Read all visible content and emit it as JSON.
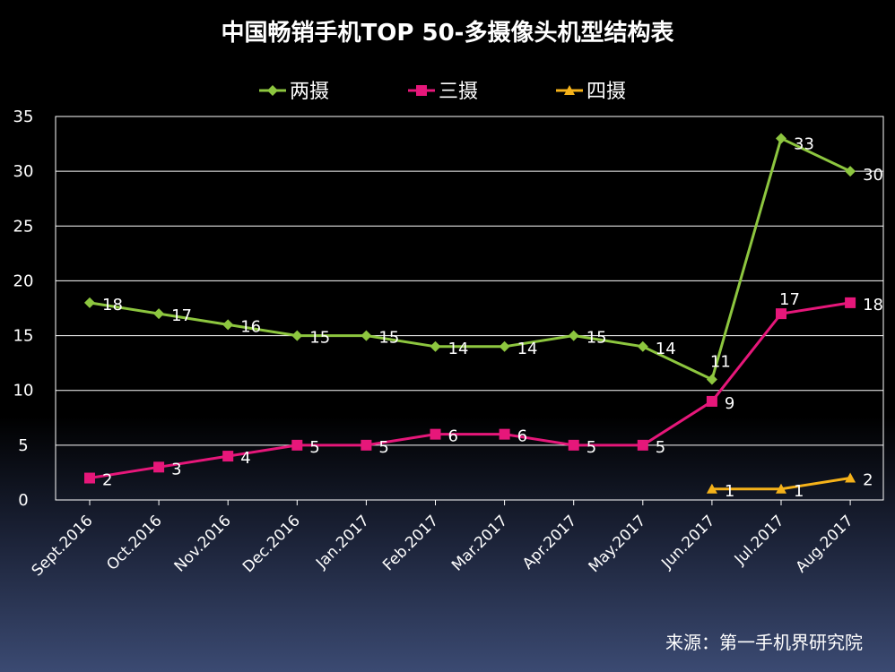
{
  "chart_data": {
    "type": "line",
    "title": "中国畅销手机TOP 50-多摄像头机型结构表",
    "categories": [
      "Sept.2016",
      "Oct.2016",
      "Nov.2016",
      "Dec.2016",
      "Jan.2017",
      "Feb.2017",
      "Mar.2017",
      "Apr.2017",
      "May.2017",
      "Jun.2017",
      "Jul.2017",
      "Aug.2017"
    ],
    "ylim": [
      0,
      35
    ],
    "yticks": [
      0,
      5,
      10,
      15,
      20,
      25,
      30,
      35
    ],
    "grid": true,
    "legend": "top-center",
    "series": [
      {
        "name": "两摄",
        "color": "#8dc63f",
        "marker": "diamond",
        "values": [
          18,
          17,
          16,
          15,
          15,
          14,
          14,
          15,
          14,
          11,
          33,
          30
        ]
      },
      {
        "name": "三摄",
        "color": "#e6177a",
        "marker": "square",
        "values": [
          2,
          3,
          4,
          5,
          5,
          6,
          6,
          5,
          5,
          9,
          17,
          18
        ]
      },
      {
        "name": "四摄",
        "color": "#f5b21a",
        "marker": "triangle",
        "values": [
          null,
          null,
          null,
          null,
          null,
          null,
          null,
          null,
          null,
          1,
          1,
          2
        ]
      }
    ],
    "source": "来源：第一手机界研究院"
  }
}
